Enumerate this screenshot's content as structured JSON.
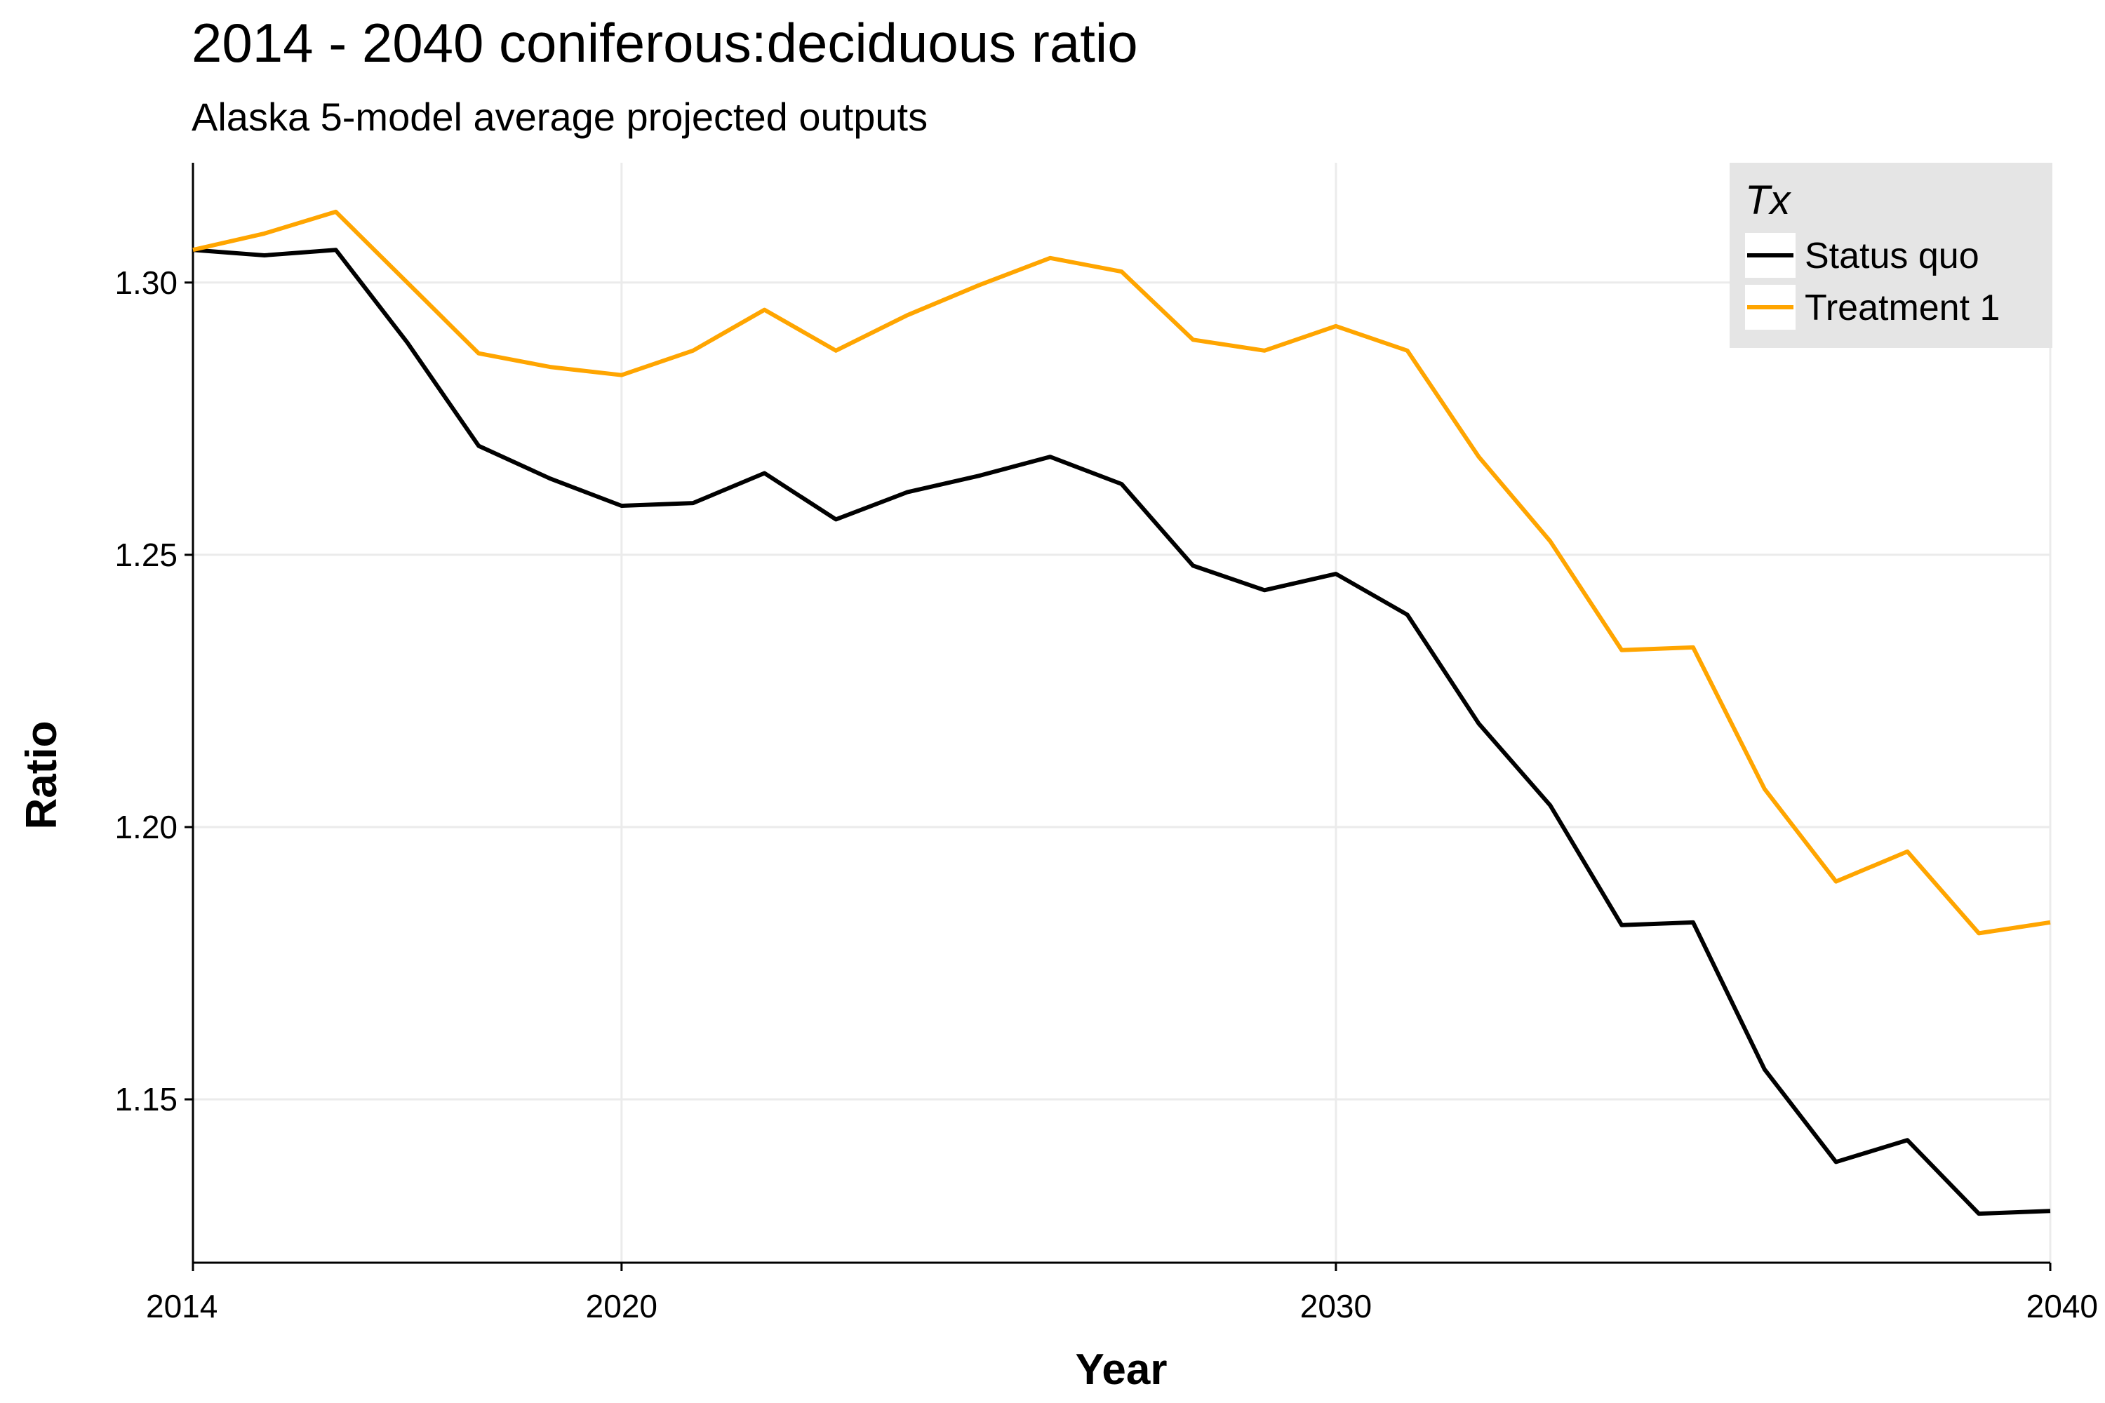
{
  "chart_data": {
    "type": "line",
    "title": "2014 - 2040 coniferous:deciduous ratio",
    "subtitle": "Alaska 5-model average projected outputs",
    "xlabel": "Year",
    "ylabel": "Ratio",
    "xlim": [
      2014,
      2040
    ],
    "ylim": [
      1.12,
      1.322
    ],
    "x_ticks": [
      2014,
      2020,
      2030,
      2040
    ],
    "y_ticks": [
      1.15,
      1.2,
      1.25,
      1.3
    ],
    "y_tick_labels": [
      "1.15",
      "1.20",
      "1.25",
      "1.30"
    ],
    "grid": true,
    "legend": {
      "title": "Tx",
      "position": "top-right",
      "entries": [
        "Status quo",
        "Treatment 1"
      ]
    },
    "x": [
      2014,
      2015,
      2016,
      2017,
      2018,
      2019,
      2020,
      2021,
      2022,
      2023,
      2024,
      2025,
      2026,
      2027,
      2028,
      2029,
      2030,
      2031,
      2032,
      2033,
      2034,
      2035,
      2036,
      2037,
      2038,
      2039,
      2040
    ],
    "series": [
      {
        "name": "Status quo",
        "color": "#000000",
        "values": [
          1.306,
          1.305,
          1.306,
          1.289,
          1.27,
          1.264,
          1.259,
          1.2595,
          1.265,
          1.2565,
          1.2615,
          1.2645,
          1.268,
          1.263,
          1.248,
          1.2435,
          1.2465,
          1.239,
          1.219,
          1.204,
          1.182,
          1.1825,
          1.1555,
          1.1385,
          1.1425,
          1.129,
          1.1295
        ]
      },
      {
        "name": "Treatment 1",
        "color": "#FFA500",
        "values": [
          1.306,
          1.309,
          1.313,
          1.3,
          1.287,
          1.2845,
          1.283,
          1.2875,
          1.295,
          1.2875,
          1.294,
          1.2995,
          1.3045,
          1.302,
          1.2895,
          1.2875,
          1.292,
          1.2875,
          1.268,
          1.2525,
          1.2325,
          1.233,
          1.207,
          1.19,
          1.1955,
          1.1805,
          1.1825
        ]
      }
    ]
  }
}
